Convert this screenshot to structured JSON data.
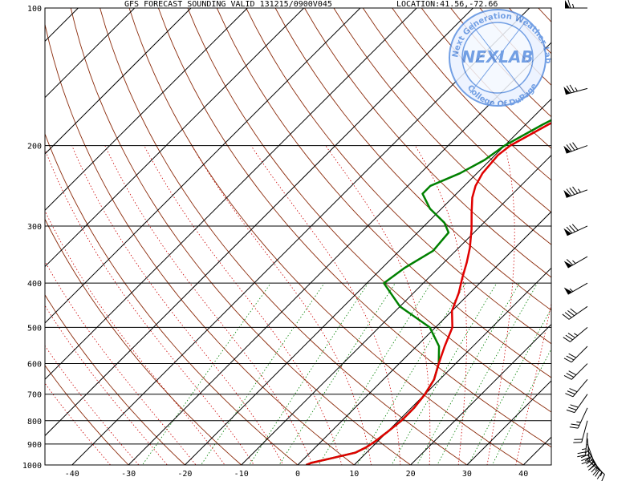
{
  "chart_data": {
    "type": "line",
    "subtype": "skew-t log-p sounding",
    "title": "GFS FORECAST SOUNDING VALID 131215/0900V045",
    "location": "LOCATION:41.56,-72.66",
    "xlabel": "",
    "ylabel": "",
    "x_ticks": [
      -40,
      -30,
      -20,
      -10,
      0,
      10,
      20,
      30,
      40
    ],
    "y_ticks": [
      100,
      200,
      300,
      400,
      500,
      600,
      700,
      800,
      900,
      1000
    ],
    "xlim": [
      -45,
      45
    ],
    "ylim": [
      1000,
      100
    ],
    "y_scale": "log",
    "grid": true,
    "series": [
      {
        "role": "temperature",
        "color": "#e00000",
        "points": [
          [
            1.5,
            1000
          ],
          [
            2,
            990
          ],
          [
            5,
            965
          ],
          [
            8,
            940
          ],
          [
            9,
            915
          ],
          [
            9.5,
            890
          ],
          [
            10,
            850
          ],
          [
            10.5,
            800
          ],
          [
            10.5,
            750
          ],
          [
            10,
            700
          ],
          [
            9,
            650
          ],
          [
            7,
            600
          ],
          [
            5,
            550
          ],
          [
            3,
            500
          ],
          [
            0,
            460
          ],
          [
            -2,
            420
          ],
          [
            -4,
            390
          ],
          [
            -6,
            360
          ],
          [
            -8,
            335
          ],
          [
            -11,
            305
          ],
          [
            -14,
            280
          ],
          [
            -16.5,
            260
          ],
          [
            -18,
            245
          ],
          [
            -19,
            230
          ],
          [
            -19.5,
            210
          ],
          [
            -19,
            200
          ],
          [
            -16,
            180
          ],
          [
            -12,
            160
          ],
          [
            -9,
            145
          ],
          [
            -5,
            130
          ],
          [
            -1,
            118
          ],
          [
            3,
            108
          ],
          [
            5,
            103
          ],
          [
            7,
            100
          ]
        ]
      },
      {
        "role": "dewpoint",
        "color": "#008000",
        "points": [
          [
            1.5,
            1000
          ],
          [
            2,
            990
          ],
          [
            5,
            965
          ],
          [
            8,
            940
          ],
          [
            9,
            915
          ],
          [
            9.5,
            890
          ],
          [
            10,
            850
          ],
          [
            10.5,
            800
          ],
          [
            10.5,
            750
          ],
          [
            10,
            700
          ],
          [
            9,
            650
          ],
          [
            7,
            600
          ],
          [
            4,
            550
          ],
          [
            -1,
            500
          ],
          [
            -10,
            450
          ],
          [
            -17,
            400
          ],
          [
            -16,
            370
          ],
          [
            -14,
            340
          ],
          [
            -14.5,
            310
          ],
          [
            -17,
            295
          ],
          [
            -22,
            275
          ],
          [
            -26,
            255
          ],
          [
            -26,
            245
          ],
          [
            -23,
            230
          ],
          [
            -21,
            215
          ],
          [
            -20,
            200
          ],
          [
            -17,
            180
          ],
          [
            -13,
            160
          ],
          [
            -10,
            145
          ],
          [
            -12,
            135
          ],
          [
            -13,
            125
          ],
          [
            -14,
            113
          ],
          [
            -15,
            106
          ],
          [
            -16,
            100
          ]
        ]
      }
    ],
    "wind_barbs": [
      {
        "p": 100,
        "dir": 270,
        "kts": 65
      },
      {
        "p": 150,
        "dir": 255,
        "kts": 75
      },
      {
        "p": 200,
        "dir": 250,
        "kts": 80
      },
      {
        "p": 250,
        "dir": 250,
        "kts": 85
      },
      {
        "p": 300,
        "dir": 245,
        "kts": 80
      },
      {
        "p": 350,
        "dir": 240,
        "kts": 65
      },
      {
        "p": 400,
        "dir": 240,
        "kts": 55
      },
      {
        "p": 450,
        "dir": 235,
        "kts": 40
      },
      {
        "p": 500,
        "dir": 230,
        "kts": 35
      },
      {
        "p": 550,
        "dir": 225,
        "kts": 30
      },
      {
        "p": 600,
        "dir": 225,
        "kts": 30
      },
      {
        "p": 650,
        "dir": 220,
        "kts": 30
      },
      {
        "p": 700,
        "dir": 215,
        "kts": 30
      },
      {
        "p": 750,
        "dir": 205,
        "kts": 25
      },
      {
        "p": 800,
        "dir": 195,
        "kts": 20
      },
      {
        "p": 850,
        "dir": 185,
        "kts": 25
      },
      {
        "p": 875,
        "dir": 175,
        "kts": 35
      },
      {
        "p": 900,
        "dir": 160,
        "kts": 40
      },
      {
        "p": 925,
        "dir": 150,
        "kts": 35
      },
      {
        "p": 950,
        "dir": 140,
        "kts": 25
      },
      {
        "p": 975,
        "dir": 130,
        "kts": 15
      }
    ],
    "colors": {
      "isobar": "#000000",
      "isotherm": "#000000",
      "dry_adiabat": "#8b2a0a",
      "moist_adiabat": "#cc0000",
      "mixing_ratio": "#008000",
      "temperature": "#e00000",
      "dewpoint": "#008000",
      "stamp": "#5a8fe0"
    }
  },
  "stamp": {
    "logo_text": "NEXLAB",
    "ring_text_top": "Next Generation Weather Lab",
    "ring_text_bottom": "College Of DuPage"
  }
}
